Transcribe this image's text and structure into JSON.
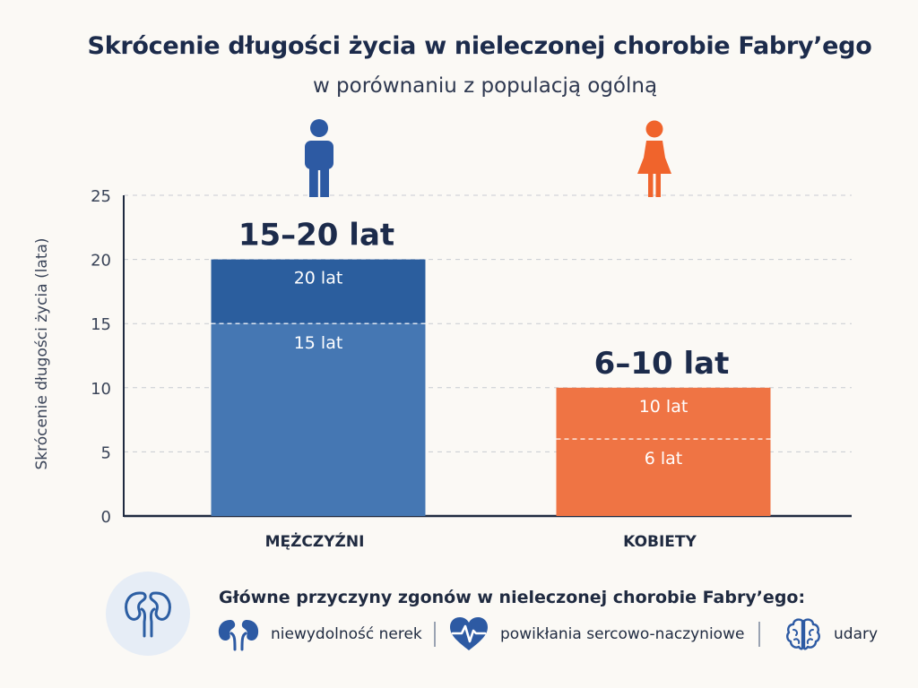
{
  "chart_data": {
    "type": "bar",
    "title": "Skrócenie długości życia w nieleczonej chorobie Fabry’ego",
    "subtitle": "w porównaniu z populacją ogólną",
    "ylabel": "Skrócenie długości życia (lata)",
    "xlabel": "",
    "ylim": [
      0,
      25
    ],
    "yticks": [
      0,
      5,
      10,
      15,
      20,
      25
    ],
    "grid": true,
    "categories": [
      "MĘŻCZYŹNI",
      "KOBIETY"
    ],
    "series": [
      {
        "values": [
          20,
          10
        ],
        "range_low": [
          15,
          6
        ],
        "range_labels": [
          "15–20 lat",
          "6–10 lat"
        ],
        "upper_labels": [
          "20 lat",
          "10 lat"
        ],
        "lower_labels": [
          "15 lat",
          "6 lat"
        ]
      }
    ],
    "colors": {
      "men_upper": "#2b5e9e",
      "men_lower": "#4577b3",
      "women": "#ef7444",
      "women_icon": "#f0642c",
      "men_icon": "#2d5aa3"
    },
    "icons": [
      "male-person-icon",
      "female-person-icon"
    ]
  },
  "causes": {
    "title": "Główne przyczyny zgonów w nieleczonej chorobie Fabry’ego:",
    "items": [
      {
        "icon": "kidneys-icon",
        "label": "niewydolność nerek"
      },
      {
        "icon": "heart-pulse-icon",
        "label": "powikłania sercowo-naczyniowe"
      },
      {
        "icon": "brain-icon",
        "label": "udary"
      }
    ]
  }
}
